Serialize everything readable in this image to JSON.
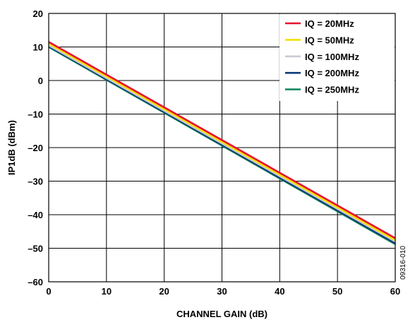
{
  "chart_data": {
    "type": "line",
    "title": "",
    "xlabel": "CHANNEL GAIN (dB)",
    "ylabel": "IP1dB (dBm)",
    "xlim": [
      0,
      60
    ],
    "ylim": [
      -60,
      20
    ],
    "x_ticks": [
      0,
      10,
      20,
      30,
      40,
      50,
      60
    ],
    "y_ticks": [
      20,
      10,
      0,
      -10,
      -20,
      -30,
      -40,
      -50,
      -60
    ],
    "x_tick_labels": [
      "0",
      "10",
      "20",
      "30",
      "40",
      "50",
      "60"
    ],
    "y_tick_labels": [
      "20",
      "10",
      "0",
      "–10",
      "–20",
      "–30",
      "–40",
      "–50",
      "–60"
    ],
    "grid": true,
    "legend_position": "top-right",
    "figure_id": "09316-010",
    "series": [
      {
        "name": "IQ = 20MHz",
        "color": "#e8112d",
        "x": [
          0,
          60
        ],
        "y": [
          11.5,
          -47.0
        ]
      },
      {
        "name": "IQ = 50MHz",
        "color": "#f5e100",
        "x": [
          0,
          60
        ],
        "y": [
          11.0,
          -47.6
        ]
      },
      {
        "name": "IQ = 100MHz",
        "color": "#c9cbd6",
        "x": [
          0,
          60
        ],
        "y": [
          10.5,
          -48.0
        ]
      },
      {
        "name": "IQ = 200MHz",
        "color": "#0a3a7a",
        "x": [
          0,
          60
        ],
        "y": [
          10.2,
          -48.5
        ]
      },
      {
        "name": "IQ = 250MHz",
        "color": "#138a5e",
        "x": [
          0,
          60
        ],
        "y": [
          10.0,
          -48.8
        ]
      }
    ]
  }
}
